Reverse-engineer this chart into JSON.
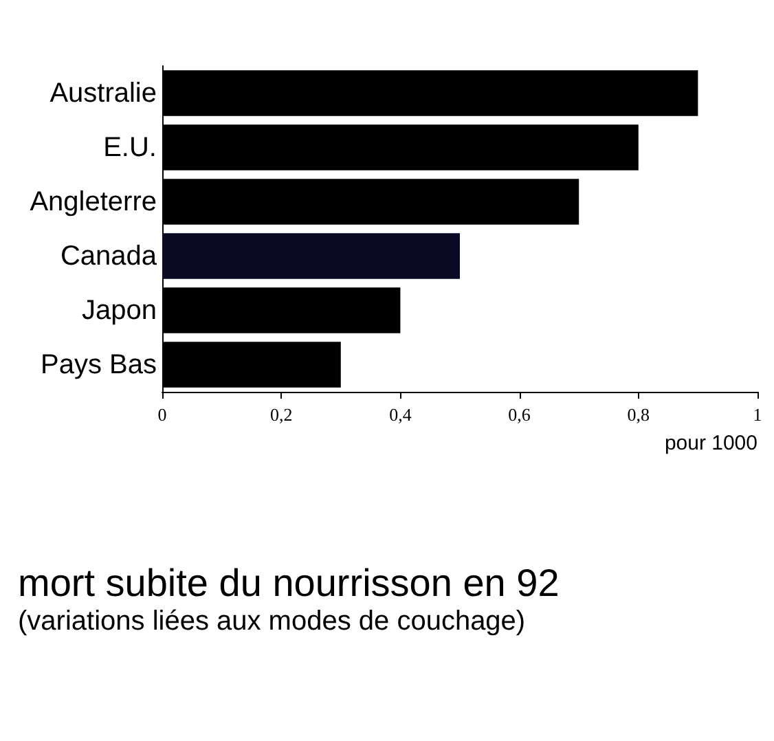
{
  "chart_data": {
    "type": "bar",
    "orientation": "horizontal",
    "title": "mort subite du nourrisson en 92",
    "subtitle": "(variations liées aux modes de couchage)",
    "xlabel": "pour 1000",
    "categories": [
      "Australie",
      "E.U.",
      "Angleterre",
      "Canada",
      "Japon",
      "Pays Bas"
    ],
    "values": [
      0.9,
      0.8,
      0.7,
      0.5,
      0.4,
      0.3
    ],
    "colors": [
      "#000000",
      "#000000",
      "#000000",
      "#0a0a24",
      "#000000",
      "#000000"
    ],
    "xlim": [
      0,
      1
    ],
    "xticks": [
      0,
      {
        "value": 0.2,
        "label": "0,2"
      },
      {
        "value": 0.4,
        "label": "0,4"
      },
      {
        "value": 0.6,
        "label": "0,6"
      },
      {
        "value": 0.8,
        "label": "0,8"
      },
      1
    ],
    "grid": false
  }
}
